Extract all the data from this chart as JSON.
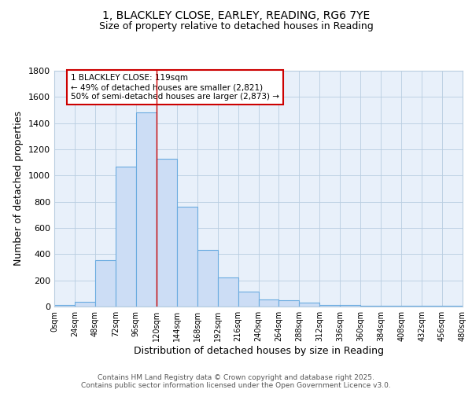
{
  "title_line1": "1, BLACKLEY CLOSE, EARLEY, READING, RG6 7YE",
  "title_line2": "Size of property relative to detached houses in Reading",
  "xlabel": "Distribution of detached houses by size in Reading",
  "ylabel": "Number of detached properties",
  "bin_edges": [
    0,
    24,
    48,
    72,
    96,
    120,
    144,
    168,
    192,
    216,
    240,
    264,
    288,
    312,
    336,
    360,
    384,
    408,
    432,
    456,
    480
  ],
  "bar_heights": [
    10,
    35,
    355,
    1070,
    1480,
    1130,
    760,
    435,
    225,
    115,
    55,
    50,
    30,
    15,
    10,
    5,
    5,
    5,
    5,
    5
  ],
  "bar_facecolor": "#ccddf5",
  "bar_edgecolor": "#6aabe0",
  "grid_color": "#b8cde0",
  "bg_color": "#e8f0fa",
  "property_line_x": 120,
  "property_line_color": "#cc0000",
  "annotation_text": "1 BLACKLEY CLOSE: 119sqm\n← 49% of detached houses are smaller (2,821)\n50% of semi-detached houses are larger (2,873) →",
  "annotation_box_edgecolor": "#cc0000",
  "ylim": [
    0,
    1800
  ],
  "xlim": [
    0,
    480
  ],
  "yticks": [
    0,
    200,
    400,
    600,
    800,
    1000,
    1200,
    1400,
    1600,
    1800
  ],
  "xtick_labels": [
    "0sqm",
    "24sqm",
    "48sqm",
    "72sqm",
    "96sqm",
    "120sqm",
    "144sqm",
    "168sqm",
    "192sqm",
    "216sqm",
    "240sqm",
    "264sqm",
    "288sqm",
    "312sqm",
    "336sqm",
    "360sqm",
    "384sqm",
    "408sqm",
    "432sqm",
    "456sqm",
    "480sqm"
  ],
  "footer_text": "Contains HM Land Registry data © Crown copyright and database right 2025.\nContains public sector information licensed under the Open Government Licence v3.0.",
  "fig_bg_color": "#ffffff"
}
